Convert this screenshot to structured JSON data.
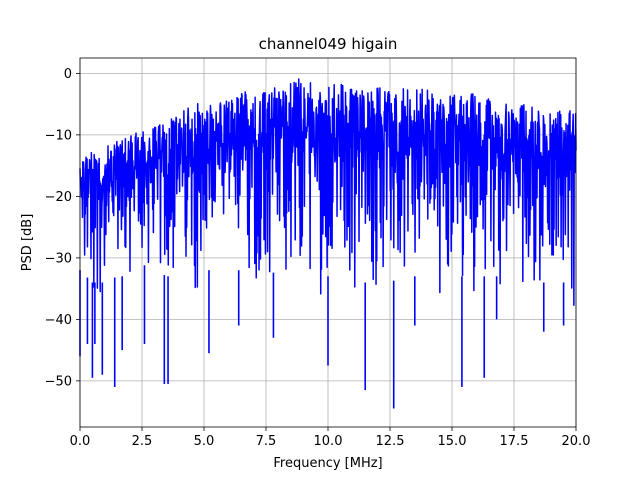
{
  "chart_data": {
    "type": "line",
    "title": "channel049 higain",
    "xlabel": "Frequency [MHz]",
    "ylabel": "PSD [dB]",
    "xlim": [
      0,
      20
    ],
    "ylim": [
      -57.5,
      2.5
    ],
    "x_ticks": [
      0.0,
      2.5,
      5.0,
      7.5,
      10.0,
      12.5,
      15.0,
      17.5,
      20.0
    ],
    "x_tick_labels": [
      "0.0",
      "2.5",
      "5.0",
      "7.5",
      "10.0",
      "12.5",
      "15.0",
      "17.5",
      "20.0"
    ],
    "y_ticks": [
      0,
      -10,
      -20,
      -30,
      -40,
      -50
    ],
    "y_tick_labels": [
      "0",
      "−10",
      "−20",
      "−30",
      "−40",
      "−50"
    ],
    "grid": true,
    "series": [
      {
        "color": "#0000ff",
        "upper_envelope": {
          "x": [
            0.0,
            0.5,
            1.0,
            1.5,
            2.0,
            2.5,
            3.0,
            3.5,
            4.0,
            4.5,
            5.0,
            5.5,
            6.0,
            6.5,
            7.0,
            7.5,
            8.0,
            8.5,
            8.8,
            9.0,
            9.5,
            10.0,
            10.5,
            11.0,
            11.5,
            12.0,
            12.5,
            13.0,
            13.5,
            14.0,
            14.5,
            15.0,
            15.5,
            16.0,
            16.5,
            17.0,
            17.5,
            18.0,
            18.5,
            19.0,
            19.5,
            20.0
          ],
          "y": [
            -13,
            -12,
            -12,
            -11,
            -10,
            -9,
            -8.5,
            -8,
            -6,
            -4.5,
            -5,
            -5,
            -4,
            -3,
            -3,
            -3,
            -1.5,
            -1.5,
            0,
            -2,
            -1,
            -1.5,
            -1,
            -2,
            -3,
            -2,
            -3,
            -2.5,
            -2.5,
            -2.5,
            -4,
            -3.5,
            -3,
            -3.5,
            -4,
            -5,
            -4.5,
            -5,
            -6,
            -6.5,
            -5.5,
            -5.5
          ]
        },
        "lower_envelope": {
          "x": [
            0.0,
            0.5,
            1.0,
            1.5,
            2.0,
            2.5,
            3.0,
            3.5,
            4.0,
            4.5,
            5.0,
            5.5,
            6.0,
            6.5,
            7.0,
            7.5,
            8.0,
            8.5,
            9.0,
            9.5,
            10.0,
            10.5,
            11.0,
            11.5,
            12.0,
            12.5,
            13.0,
            13.5,
            14.0,
            14.5,
            15.0,
            15.5,
            16.0,
            16.5,
            17.0,
            17.5,
            18.0,
            18.5,
            19.0,
            19.5,
            20.0
          ],
          "y": [
            -36,
            -38,
            -38,
            -37,
            -37,
            -35,
            -36,
            -37,
            -37,
            -37,
            -36,
            -36,
            -36,
            -36,
            -36,
            -37,
            -36,
            -36,
            -36,
            -37,
            -37,
            -37,
            -37,
            -38,
            -38,
            -38,
            -37,
            -37,
            -37,
            -37,
            -37,
            -37,
            -37,
            -37,
            -37,
            -38,
            -38,
            -38,
            -38,
            -38,
            -38
          ]
        },
        "deep_dips": [
          {
            "x": 0.0,
            "y": -46
          },
          {
            "x": 0.3,
            "y": -44
          },
          {
            "x": 0.6,
            "y": -44
          },
          {
            "x": 0.5,
            "y": -49.5
          },
          {
            "x": 0.9,
            "y": -49
          },
          {
            "x": 1.4,
            "y": -51
          },
          {
            "x": 1.7,
            "y": -45
          },
          {
            "x": 2.6,
            "y": -44
          },
          {
            "x": 3.4,
            "y": -50.5
          },
          {
            "x": 3.55,
            "y": -50.5
          },
          {
            "x": 5.2,
            "y": -45.5
          },
          {
            "x": 6.4,
            "y": -41
          },
          {
            "x": 7.8,
            "y": -43
          },
          {
            "x": 10.0,
            "y": -47.5
          },
          {
            "x": 11.5,
            "y": -51.5
          },
          {
            "x": 12.65,
            "y": -54.5
          },
          {
            "x": 13.5,
            "y": -41
          },
          {
            "x": 15.4,
            "y": -51
          },
          {
            "x": 16.3,
            "y": -49.5
          },
          {
            "x": 16.8,
            "y": -40
          },
          {
            "x": 18.7,
            "y": -42
          },
          {
            "x": 19.5,
            "y": -41
          }
        ]
      }
    ]
  }
}
